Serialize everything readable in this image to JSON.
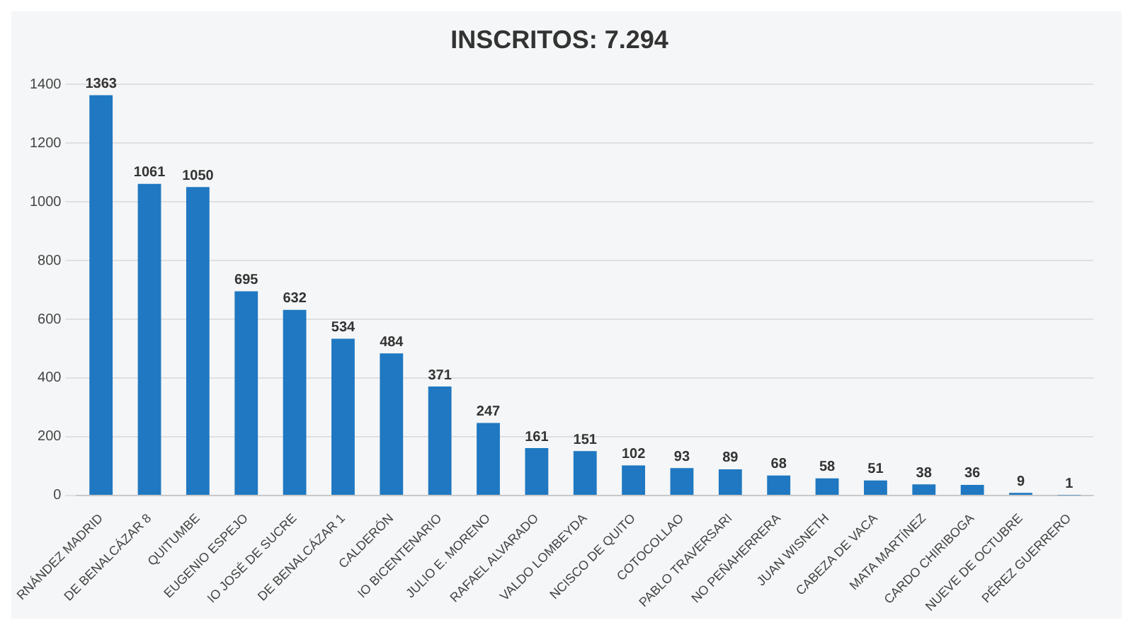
{
  "chart_data": {
    "type": "bar",
    "title": "INSCRITOS: 7.294",
    "categories": [
      "RNÁNDEZ MADRID",
      "DE BENALCÁZAR 8",
      "QUITUMBE",
      "EUGENIO ESPEJO",
      "IO JOSÉ DE SUCRE",
      "DE BENALCÁZAR 1",
      "CALDERÓN",
      "IO BICENTENARIO",
      "JULIO E. MORENO",
      "RAFAEL ALVARADO",
      "VALDO LOMBEYDA",
      "NCISCO DE QUITO",
      "COTOCOLLAO",
      "PABLO TRAVERSARI",
      "NO PEÑAHERRERA",
      "JUAN WISNETH",
      "CABEZA DE VACA",
      "MATA MARTÍNEZ",
      "CARDO CHIRIBOGA",
      "NUEVE DE OCTUBRE",
      "PÉREZ GUERRERO"
    ],
    "values": [
      1363,
      1061,
      1050,
      695,
      632,
      534,
      484,
      371,
      247,
      161,
      151,
      102,
      93,
      89,
      68,
      58,
      51,
      38,
      36,
      9,
      1
    ],
    "color": "#1f78c1",
    "ylim": [
      0,
      1400
    ],
    "yticks": [
      0,
      200,
      400,
      600,
      800,
      1000,
      1200,
      1400
    ],
    "grid": "y",
    "data_labels": true,
    "legend": false
  }
}
